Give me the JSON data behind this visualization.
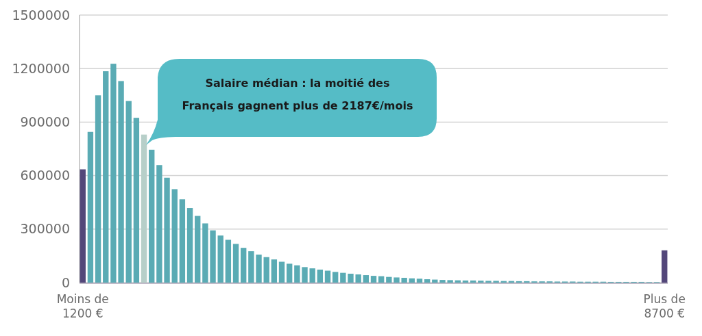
{
  "chart_data": {
    "type": "bar",
    "categories": [
      "Moins de 1200 €",
      null,
      null,
      null,
      null,
      null,
      null,
      null,
      null,
      null,
      null,
      null,
      null,
      null,
      null,
      null,
      null,
      null,
      null,
      null,
      null,
      null,
      null,
      null,
      null,
      null,
      null,
      null,
      null,
      null,
      null,
      null,
      null,
      null,
      null,
      null,
      null,
      null,
      null,
      null,
      null,
      null,
      null,
      null,
      null,
      null,
      null,
      null,
      null,
      null,
      null,
      null,
      null,
      null,
      null,
      null,
      null,
      null,
      null,
      null,
      null,
      null,
      null,
      null,
      null,
      null,
      null,
      null,
      null,
      null,
      null,
      null,
      null,
      null,
      null,
      null,
      "Plus de 8700 €"
    ],
    "values": [
      635000,
      845000,
      1050000,
      1185000,
      1227000,
      1130000,
      1018000,
      924000,
      830000,
      745000,
      659000,
      588000,
      524000,
      467000,
      418000,
      374000,
      332000,
      293000,
      264000,
      240000,
      217000,
      195000,
      176000,
      157000,
      143000,
      130000,
      117000,
      106000,
      97000,
      87000,
      80000,
      73000,
      67000,
      60000,
      55000,
      50000,
      46000,
      42000,
      38000,
      36000,
      32000,
      29000,
      27000,
      24000,
      22000,
      19000,
      17000,
      15000,
      14000,
      13000,
      12000,
      12000,
      11000,
      10000,
      10000,
      9000,
      9000,
      8000,
      8000,
      7000,
      7000,
      7000,
      6000,
      6000,
      6000,
      5000,
      5000,
      5000,
      5000,
      4000,
      4000,
      4000,
      4000,
      4000,
      3000,
      3000,
      181000
    ],
    "colors": [
      "#53477a",
      "#5aabb4",
      "#5aabb4",
      "#5aabb4",
      "#5aabb4",
      "#5aabb4",
      "#5aabb4",
      "#5aabb4",
      "#b7cfc9",
      "#5aabb4",
      "#5aabb4",
      "#5aabb4",
      "#5aabb4",
      "#5aabb4",
      "#5aabb4",
      "#5aabb4",
      "#5aabb4",
      "#5aabb4",
      "#5aabb4",
      "#5aabb4",
      "#5aabb4",
      "#5aabb4",
      "#5aabb4",
      "#5aabb4",
      "#5aabb4",
      "#5aabb4",
      "#5aabb4",
      "#5aabb4",
      "#5aabb4",
      "#5aabb4",
      "#5aabb4",
      "#5aabb4",
      "#5aabb4",
      "#5aabb4",
      "#5aabb4",
      "#5aabb4",
      "#5aabb4",
      "#5aabb4",
      "#5aabb4",
      "#5aabb4",
      "#5aabb4",
      "#5aabb4",
      "#5aabb4",
      "#5aabb4",
      "#5aabb4",
      "#5aabb4",
      "#5aabb4",
      "#5aabb4",
      "#5aabb4",
      "#5aabb4",
      "#5aabb4",
      "#5aabb4",
      "#5aabb4",
      "#5aabb4",
      "#5aabb4",
      "#5aabb4",
      "#5aabb4",
      "#5aabb4",
      "#5aabb4",
      "#5aabb4",
      "#5aabb4",
      "#5aabb4",
      "#5aabb4",
      "#5aabb4",
      "#5aabb4",
      "#5aabb4",
      "#5aabb4",
      "#5aabb4",
      "#5aabb4",
      "#5aabb4",
      "#5aabb4",
      "#5aabb4",
      "#5aabb4",
      "#5aabb4",
      "#5aabb4",
      "#5aabb4",
      "#53477a"
    ],
    "ylim": [
      0,
      1500000
    ],
    "yticks": [
      0,
      300000,
      600000,
      900000,
      1200000,
      1500000
    ],
    "grid": "y",
    "annotations": [
      "Salaire médian : la moitié des Français gagnent plus de 2187€/mois"
    ]
  }
}
